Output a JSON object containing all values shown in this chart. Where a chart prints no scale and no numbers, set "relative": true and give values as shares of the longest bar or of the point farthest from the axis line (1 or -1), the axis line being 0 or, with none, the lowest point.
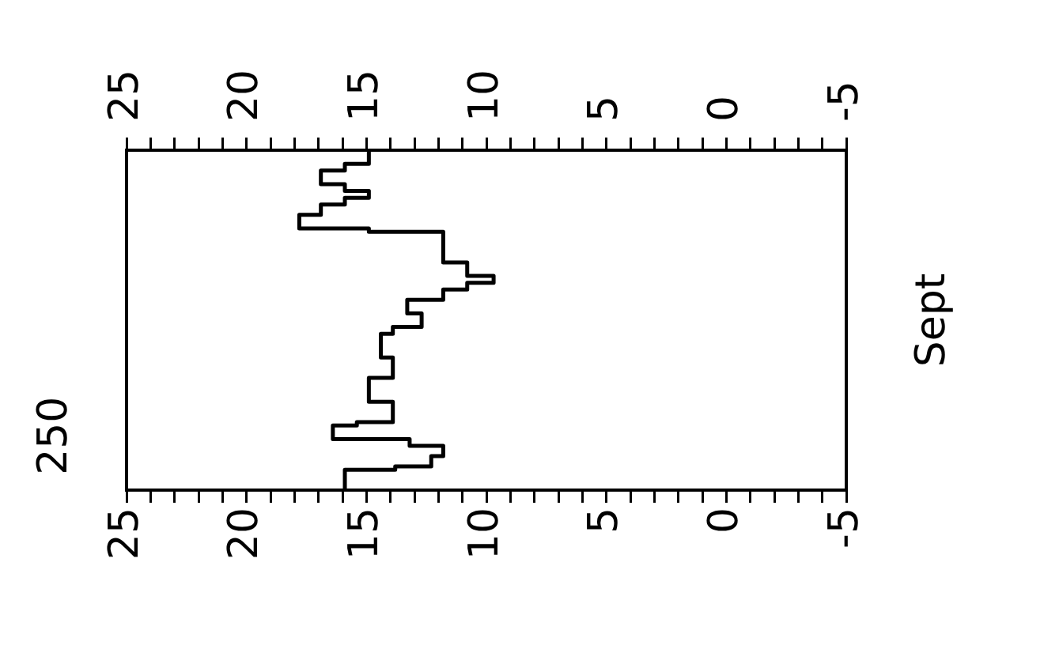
{
  "chart_data": {
    "type": "step",
    "ylabel": "Sept",
    "x": [
      15.9,
      13.8,
      12.3,
      11.8,
      13.2,
      16.4,
      15.4,
      13.9,
      14.9,
      13.9,
      14.4,
      13.9,
      12.7,
      13.3,
      11.8,
      10.8,
      9.7,
      10.8,
      11.8,
      14.9,
      17.8,
      16.9,
      15.9,
      14.9,
      15.9,
      16.9,
      15.9,
      14.9,
      14.9
    ],
    "series": [
      {
        "color": "#000000",
        "values": [
          0,
          0.06,
          0.07,
          0.1,
          0.13,
          0.15,
          0.19,
          0.2,
          0.26,
          0.33,
          0.39,
          0.46,
          0.48,
          0.52,
          0.56,
          0.59,
          0.61,
          0.63,
          0.67,
          0.76,
          0.77,
          0.81,
          0.84,
          0.86,
          0.88,
          0.9,
          0.94,
          0.96,
          1
        ]
      }
    ],
    "relative": true,
    "annotations": [
      "250"
    ],
    "xlim": [
      25,
      -5
    ],
    "x2lim": [
      25,
      -5
    ],
    "xticks": [
      25,
      {
        "value": 24,
        "label": null
      },
      {
        "value": 23,
        "label": null
      },
      {
        "value": 22,
        "label": null
      },
      {
        "value": 21,
        "label": null
      },
      20,
      {
        "value": 19,
        "label": null
      },
      {
        "value": 18,
        "label": null
      },
      {
        "value": 17,
        "label": null
      },
      {
        "value": 16,
        "label": null
      },
      15,
      {
        "value": 14,
        "label": null
      },
      {
        "value": 13,
        "label": null
      },
      {
        "value": 12,
        "label": null
      },
      {
        "value": 11,
        "label": null
      },
      10,
      {
        "value": 9,
        "label": null
      },
      {
        "value": 8,
        "label": null
      },
      {
        "value": 7,
        "label": null
      },
      {
        "value": 6,
        "label": null
      },
      5,
      {
        "value": 4,
        "label": null
      },
      {
        "value": 3,
        "label": null
      },
      {
        "value": 2,
        "label": null
      },
      {
        "value": 1,
        "label": null
      },
      0,
      {
        "value": -1,
        "label": null
      },
      {
        "value": -2,
        "label": null
      },
      {
        "value": -3,
        "label": null
      },
      {
        "value": -4,
        "label": null
      },
      -5
    ],
    "x2ticks": [
      25,
      {
        "value": 24,
        "label": null
      },
      {
        "value": 23,
        "label": null
      },
      {
        "value": 22,
        "label": null
      },
      {
        "value": 21,
        "label": null
      },
      20,
      {
        "value": 19,
        "label": null
      },
      {
        "value": 18,
        "label": null
      },
      {
        "value": 17,
        "label": null
      },
      {
        "value": 16,
        "label": null
      },
      15,
      {
        "value": 14,
        "label": null
      },
      {
        "value": 13,
        "label": null
      },
      {
        "value": 12,
        "label": null
      },
      {
        "value": 11,
        "label": null
      },
      10,
      {
        "value": 9,
        "label": null
      },
      {
        "value": 8,
        "label": null
      },
      {
        "value": 7,
        "label": null
      },
      {
        "value": 6,
        "label": null
      },
      5,
      {
        "value": 4,
        "label": null
      },
      {
        "value": 3,
        "label": null
      },
      {
        "value": 2,
        "label": null
      },
      {
        "value": 1,
        "label": null
      },
      0,
      {
        "value": -1,
        "label": null
      },
      {
        "value": -2,
        "label": null
      },
      {
        "value": -3,
        "label": null
      },
      {
        "value": -4,
        "label": null
      },
      -5
    ],
    "grid": false,
    "legend": false,
    "marker": "none",
    "line_style": "solid"
  }
}
